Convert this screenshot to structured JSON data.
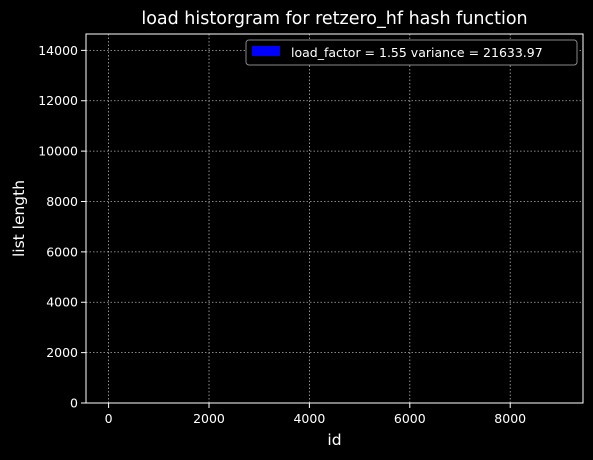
{
  "chart_data": {
    "type": "bar",
    "title": "load historgram for retzero_hf hash function",
    "xlabel": "id",
    "ylabel": "list length",
    "xlim": [
      -450,
      9450
    ],
    "ylim": [
      0,
      14650
    ],
    "xticks": [
      0,
      2000,
      4000,
      6000,
      8000
    ],
    "yticks": [
      0,
      2000,
      4000,
      6000,
      8000,
      10000,
      12000,
      14000
    ],
    "grid": true,
    "legend_position": "top-right",
    "series": [
      {
        "name": "load_factor = 1.55 variance = 21633.97",
        "color": "#0000ff",
        "values": []
      }
    ],
    "colors": {
      "background": "#000000",
      "foreground": "#ffffff",
      "grid": "#b0b0b0",
      "legend_border": "#888888"
    }
  }
}
